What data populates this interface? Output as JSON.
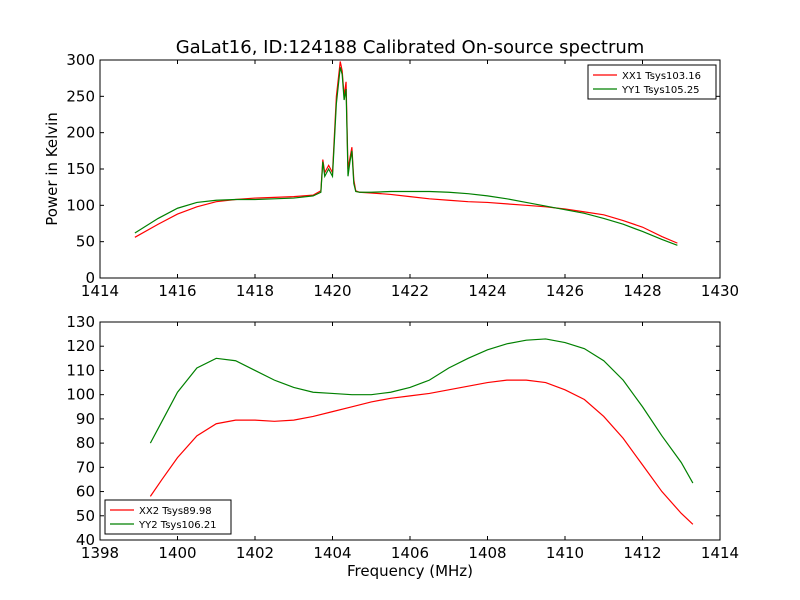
{
  "figure_title": "GaLat16, ID:124188 Calibrated On-source spectrum",
  "chart_data": [
    {
      "type": "line",
      "title": "GaLat16, ID:124188 Calibrated On-source spectrum",
      "xlabel": "",
      "ylabel": "Power in Kelvin",
      "xlim": [
        1414,
        1430
      ],
      "ylim": [
        0,
        300
      ],
      "xticks": [
        1414,
        1416,
        1418,
        1420,
        1422,
        1424,
        1426,
        1428,
        1430
      ],
      "yticks": [
        0,
        50,
        100,
        150,
        200,
        250,
        300
      ],
      "grid": false,
      "legend_position": "top-right",
      "series": [
        {
          "name": "XX1 Tsys103.16",
          "color": "#ff0000",
          "x": [
            1414.9,
            1415.5,
            1416.0,
            1416.5,
            1417.0,
            1417.5,
            1418.0,
            1418.5,
            1419.0,
            1419.5,
            1419.7,
            1419.75,
            1419.8,
            1419.9,
            1420.0,
            1420.1,
            1420.2,
            1420.25,
            1420.3,
            1420.35,
            1420.4,
            1420.45,
            1420.5,
            1420.55,
            1420.6,
            1420.7,
            1421.0,
            1421.5,
            1422.0,
            1422.5,
            1423.0,
            1423.5,
            1424.0,
            1424.5,
            1425.0,
            1425.5,
            1426.0,
            1426.5,
            1427.0,
            1427.5,
            1428.0,
            1428.5,
            1428.9
          ],
          "y": [
            56,
            74,
            88,
            98,
            105,
            108,
            110,
            111,
            112,
            114,
            120,
            163,
            145,
            155,
            145,
            250,
            298,
            285,
            250,
            270,
            150,
            165,
            180,
            135,
            120,
            118,
            117,
            115,
            112,
            109,
            107,
            105,
            104,
            102,
            100,
            98,
            95,
            91,
            87,
            79,
            70,
            57,
            48
          ]
        },
        {
          "name": "YY1 Tsys105.25",
          "color": "#008000",
          "x": [
            1414.9,
            1415.5,
            1416.0,
            1416.5,
            1417.0,
            1417.5,
            1418.0,
            1418.5,
            1419.0,
            1419.5,
            1419.7,
            1419.75,
            1419.8,
            1419.9,
            1420.0,
            1420.1,
            1420.2,
            1420.25,
            1420.3,
            1420.35,
            1420.4,
            1420.45,
            1420.5,
            1420.55,
            1420.6,
            1420.7,
            1421.0,
            1421.5,
            1422.0,
            1422.5,
            1423.0,
            1423.5,
            1424.0,
            1424.5,
            1425.0,
            1425.5,
            1426.0,
            1426.5,
            1427.0,
            1427.5,
            1428.0,
            1428.5,
            1428.9
          ],
          "y": [
            62,
            82,
            96,
            104,
            107,
            108,
            108,
            109,
            110,
            113,
            118,
            160,
            140,
            150,
            140,
            240,
            290,
            280,
            245,
            260,
            140,
            160,
            175,
            130,
            119,
            118,
            118,
            119,
            119,
            119,
            118,
            116,
            113,
            109,
            104,
            99,
            94,
            89,
            82,
            74,
            64,
            53,
            45
          ]
        }
      ]
    },
    {
      "type": "line",
      "title": "",
      "xlabel": "Frequency (MHz)",
      "ylabel": "",
      "xlim": [
        1398,
        1414
      ],
      "ylim": [
        40,
        130
      ],
      "xticks": [
        1398,
        1400,
        1402,
        1404,
        1406,
        1408,
        1410,
        1412,
        1414
      ],
      "yticks": [
        40,
        50,
        60,
        70,
        80,
        90,
        100,
        110,
        120,
        130
      ],
      "grid": false,
      "legend_position": "bottom-left",
      "series": [
        {
          "name": "XX2 Tsys89.98",
          "color": "#ff0000",
          "x": [
            1399.3,
            1399.6,
            1400.0,
            1400.5,
            1401.0,
            1401.5,
            1402.0,
            1402.5,
            1403.0,
            1403.5,
            1404.0,
            1404.5,
            1405.0,
            1405.5,
            1406.0,
            1406.5,
            1407.0,
            1407.5,
            1408.0,
            1408.5,
            1409.0,
            1409.5,
            1410.0,
            1410.5,
            1411.0,
            1411.5,
            1412.0,
            1412.5,
            1413.0,
            1413.3
          ],
          "y": [
            58,
            65,
            74,
            83,
            88,
            89.5,
            89.5,
            89,
            89.5,
            91,
            93,
            95,
            97,
            98.5,
            99.5,
            100.5,
            102,
            103.5,
            105,
            106,
            106,
            105,
            102,
            98,
            91,
            82,
            71,
            60,
            51,
            46.5
          ]
        },
        {
          "name": "YY2 Tsys106.21",
          "color": "#008000",
          "x": [
            1399.3,
            1399.6,
            1400.0,
            1400.5,
            1401.0,
            1401.5,
            1402.0,
            1402.5,
            1403.0,
            1403.5,
            1404.0,
            1404.5,
            1405.0,
            1405.5,
            1406.0,
            1406.5,
            1407.0,
            1407.5,
            1408.0,
            1408.5,
            1409.0,
            1409.5,
            1410.0,
            1410.5,
            1411.0,
            1411.5,
            1412.0,
            1412.5,
            1413.0,
            1413.3
          ],
          "y": [
            80,
            89,
            101,
            111,
            115,
            114,
            110,
            106,
            103,
            101,
            100.5,
            100,
            100,
            101,
            103,
            106,
            111,
            115,
            118.5,
            121,
            122.5,
            123,
            121.5,
            119,
            114,
            106,
            95,
            83,
            72,
            63.5
          ]
        }
      ]
    }
  ]
}
